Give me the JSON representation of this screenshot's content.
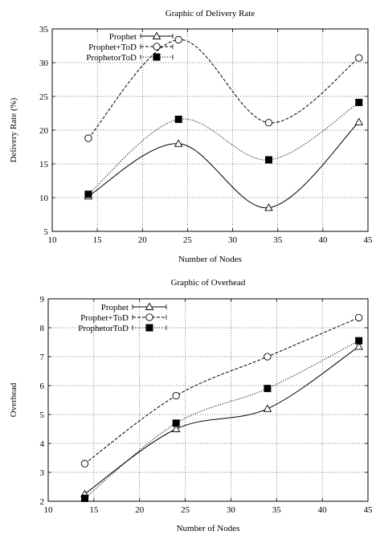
{
  "chart_data": [
    {
      "type": "line",
      "title": "Graphic of Delivery Rate",
      "xlabel": "Number of Nodes",
      "ylabel": "Delivery Rate (%)",
      "xlim": [
        10,
        45
      ],
      "ylim": [
        5,
        35
      ],
      "x_ticks": [
        "10",
        "15",
        "20",
        "25",
        "30",
        "35",
        "40",
        "45"
      ],
      "y_ticks": [
        "5",
        "10",
        "15",
        "20",
        "25",
        "30",
        "35"
      ],
      "grid": true,
      "legend_position": "top-left",
      "x": [
        14,
        24,
        34,
        44
      ],
      "series": [
        {
          "name": "Prophet",
          "values": [
            10.2,
            18.0,
            8.5,
            21.2
          ],
          "marker": "triangle",
          "line": "solid"
        },
        {
          "name": "Prophet+ToD",
          "values": [
            18.8,
            33.4,
            21.1,
            30.7
          ],
          "marker": "circle",
          "line": "dashed"
        },
        {
          "name": "ProphetorToD",
          "values": [
            10.5,
            21.6,
            15.6,
            24.1
          ],
          "marker": "square",
          "line": "dotted"
        }
      ]
    },
    {
      "type": "line",
      "title": "Graphic of Overhead",
      "xlabel": "Number of Nodes",
      "ylabel": "Overhead",
      "xlim": [
        10,
        45
      ],
      "ylim": [
        2,
        9
      ],
      "x_ticks": [
        "10",
        "15",
        "20",
        "25",
        "30",
        "35",
        "40",
        "45"
      ],
      "y_ticks": [
        "2",
        "3",
        "4",
        "5",
        "6",
        "7",
        "8",
        "9"
      ],
      "grid": true,
      "legend_position": "top-left",
      "x": [
        14,
        24,
        34,
        44
      ],
      "series": [
        {
          "name": "Prophet",
          "values": [
            2.25,
            4.5,
            5.2,
            7.35
          ],
          "marker": "triangle",
          "line": "solid"
        },
        {
          "name": "Prophet+ToD",
          "values": [
            3.3,
            5.65,
            7.0,
            8.35
          ],
          "marker": "circle",
          "line": "dashed"
        },
        {
          "name": "ProphetorToD",
          "values": [
            2.1,
            4.7,
            5.9,
            7.55
          ],
          "marker": "square",
          "line": "dotted"
        }
      ]
    }
  ]
}
